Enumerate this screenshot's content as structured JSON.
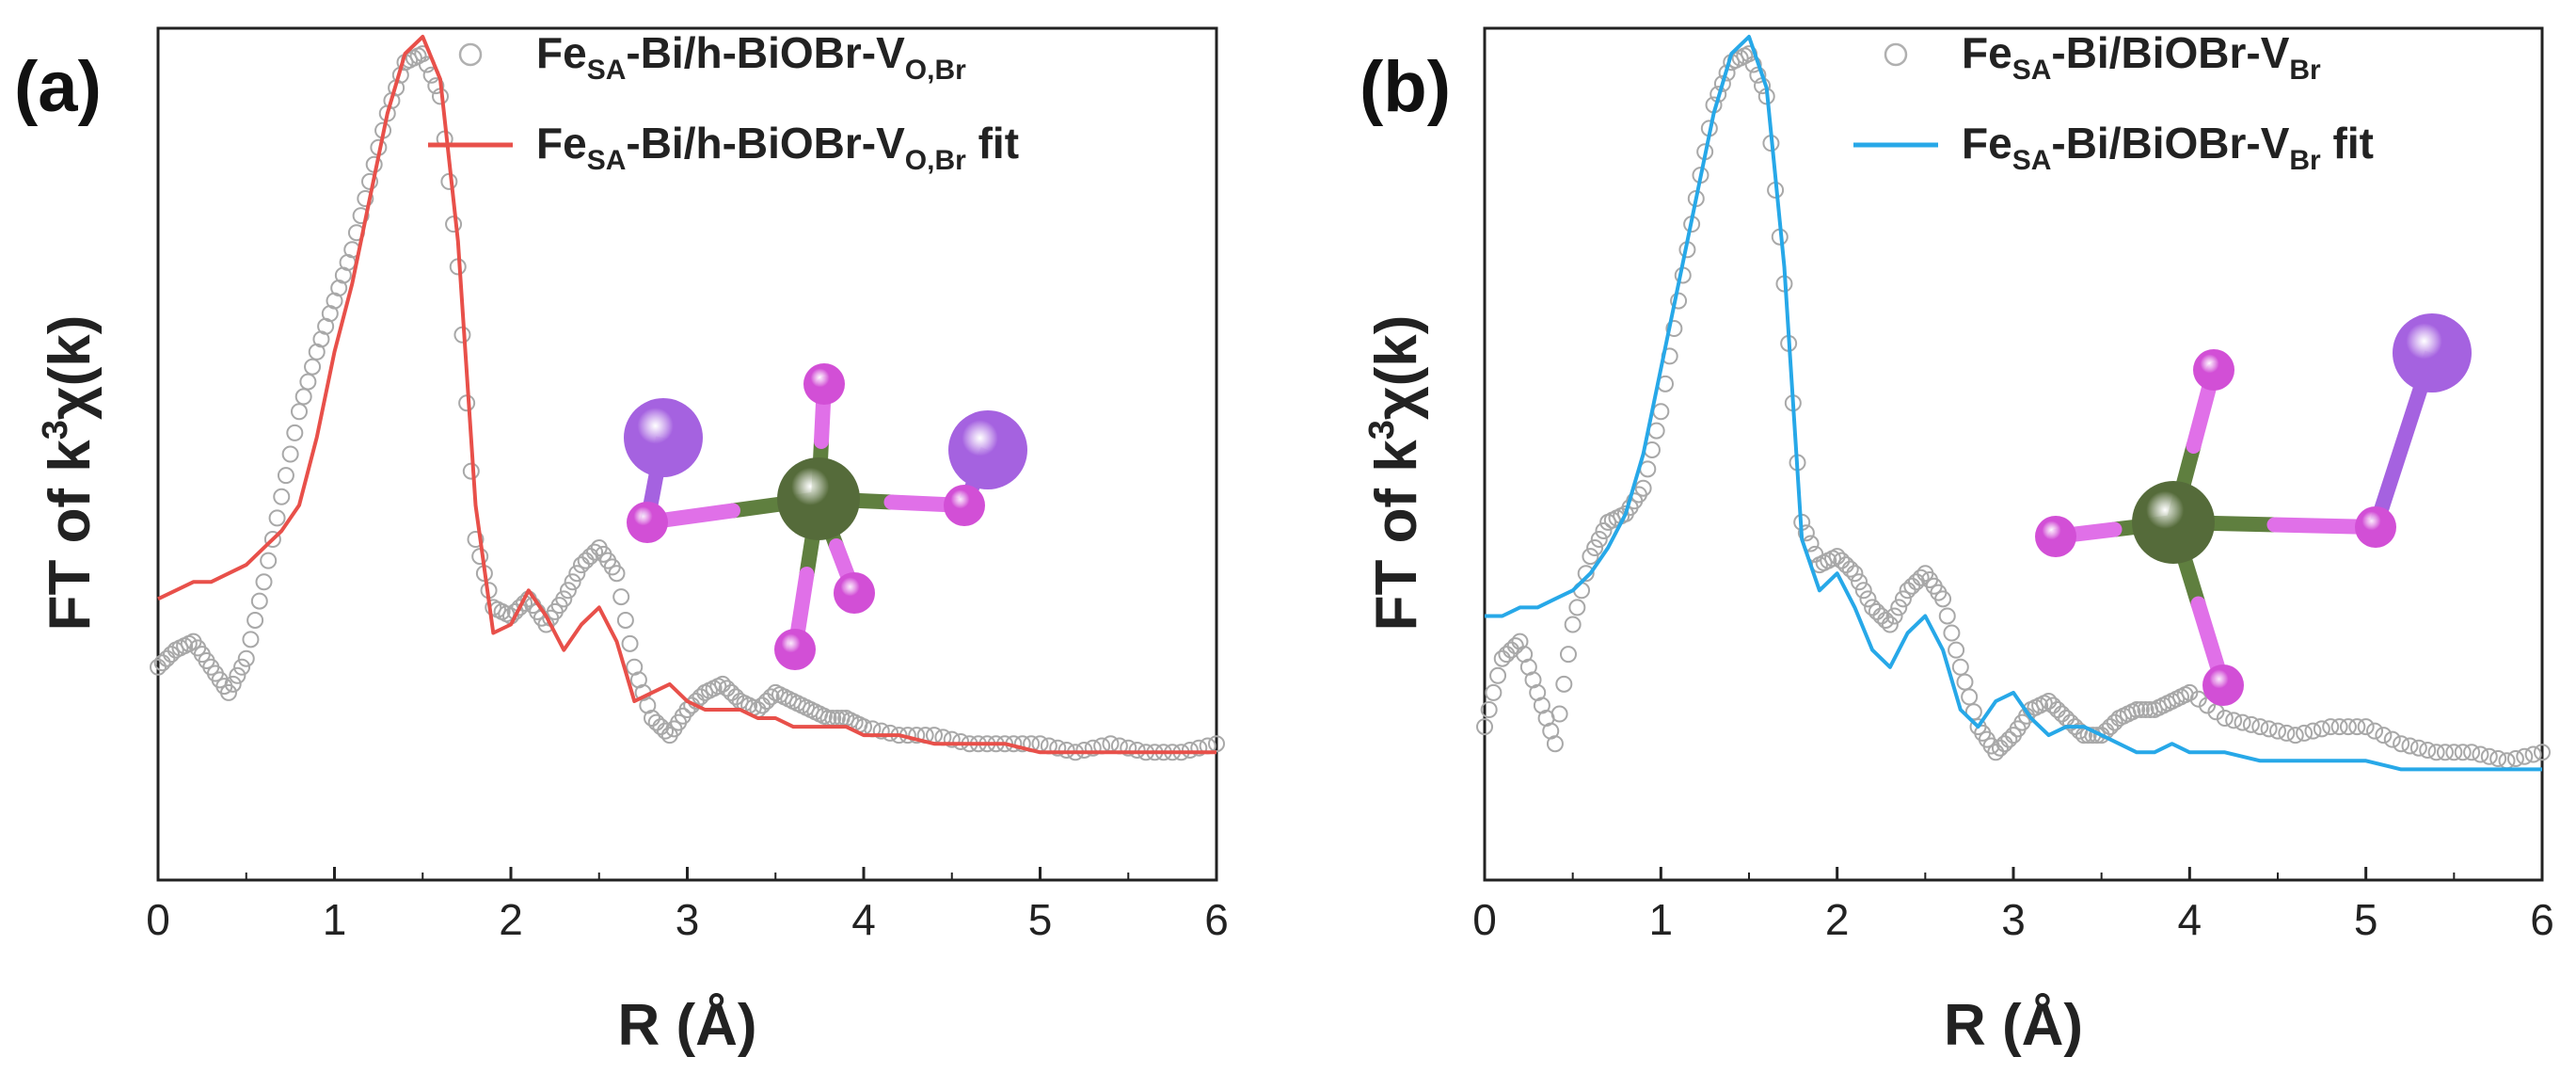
{
  "figure": {
    "background": "#ffffff",
    "atom_colors": {
      "fe": "#556b3a",
      "o": "#d24fd6",
      "bi": "#a562e0",
      "bond_fe": "#5f7f3f",
      "bond_o": "#e070e8"
    }
  },
  "chart_data": [
    {
      "panel": "(a)",
      "type": "line",
      "xlabel": "R (Å)",
      "ylabel_main": "FT of k",
      "ylabel_sup": "3",
      "ylabel_tail": "χ(k)",
      "xlim": [
        0,
        6
      ],
      "ylim": [
        0,
        1
      ],
      "xticks": [
        "0",
        "1",
        "2",
        "3",
        "4",
        "5",
        "6"
      ],
      "legend": {
        "position": "top-right",
        "entries": [
          {
            "marker": "circle",
            "color": "#b0b0b0",
            "base": "Fe",
            "sub1": "SA",
            "mid": "-Bi/h-BiOBr-V",
            "sub2": "O,Br",
            "tail": ""
          },
          {
            "marker": "line",
            "color": "#e8504a",
            "base": "Fe",
            "sub1": "SA",
            "mid": "-Bi/h-BiOBr-V",
            "sub2": "O,Br",
            "tail": " fit"
          }
        ]
      },
      "series": [
        {
          "name": "Fe_SA-Bi/h-BiOBr-V_O,Br",
          "style": "markers",
          "color": "#a8a8a8",
          "x": [
            0.0,
            0.1,
            0.2,
            0.3,
            0.4,
            0.5,
            0.6,
            0.7,
            0.8,
            0.9,
            1.0,
            1.1,
            1.2,
            1.3,
            1.4,
            1.5,
            1.6,
            1.7,
            1.8,
            1.9,
            2.0,
            2.1,
            2.2,
            2.3,
            2.4,
            2.5,
            2.6,
            2.7,
            2.8,
            2.9,
            3.0,
            3.1,
            3.2,
            3.3,
            3.4,
            3.5,
            3.6,
            3.7,
            3.8,
            3.9,
            4.0,
            4.2,
            4.4,
            4.6,
            4.8,
            5.0,
            5.2,
            5.4,
            5.6,
            5.8,
            6.0
          ],
          "y": [
            0.25,
            0.27,
            0.28,
            0.25,
            0.22,
            0.26,
            0.35,
            0.45,
            0.55,
            0.62,
            0.68,
            0.74,
            0.82,
            0.9,
            0.96,
            0.97,
            0.92,
            0.72,
            0.4,
            0.32,
            0.31,
            0.33,
            0.3,
            0.33,
            0.37,
            0.39,
            0.36,
            0.25,
            0.19,
            0.17,
            0.2,
            0.22,
            0.23,
            0.21,
            0.2,
            0.22,
            0.21,
            0.2,
            0.19,
            0.19,
            0.18,
            0.17,
            0.17,
            0.16,
            0.16,
            0.16,
            0.15,
            0.16,
            0.15,
            0.15,
            0.16
          ]
        },
        {
          "name": "Fe_SA-Bi/h-BiOBr-V_O,Br fit",
          "style": "line",
          "color": "#e8504a",
          "x": [
            0.0,
            0.1,
            0.2,
            0.3,
            0.4,
            0.5,
            0.6,
            0.7,
            0.8,
            0.9,
            1.0,
            1.1,
            1.2,
            1.3,
            1.4,
            1.5,
            1.6,
            1.7,
            1.8,
            1.9,
            2.0,
            2.1,
            2.2,
            2.3,
            2.4,
            2.5,
            2.6,
            2.7,
            2.8,
            2.9,
            3.0,
            3.1,
            3.2,
            3.3,
            3.4,
            3.5,
            3.6,
            3.7,
            3.8,
            3.9,
            4.0,
            4.2,
            4.4,
            4.6,
            4.8,
            5.0,
            5.2,
            5.4,
            5.6,
            5.8,
            6.0
          ],
          "y": [
            0.33,
            0.34,
            0.35,
            0.35,
            0.36,
            0.37,
            0.39,
            0.41,
            0.44,
            0.52,
            0.62,
            0.7,
            0.8,
            0.9,
            0.97,
            0.99,
            0.94,
            0.75,
            0.44,
            0.29,
            0.3,
            0.34,
            0.31,
            0.27,
            0.3,
            0.32,
            0.28,
            0.21,
            0.22,
            0.23,
            0.21,
            0.2,
            0.2,
            0.2,
            0.19,
            0.19,
            0.18,
            0.18,
            0.18,
            0.18,
            0.17,
            0.17,
            0.16,
            0.16,
            0.16,
            0.15,
            0.15,
            0.15,
            0.15,
            0.15,
            0.15
          ]
        }
      ]
    },
    {
      "panel": "(b)",
      "type": "line",
      "xlabel": "R (Å)",
      "ylabel_main": "FT of k",
      "ylabel_sup": "3",
      "ylabel_tail": "χ(k)",
      "xlim": [
        0,
        6
      ],
      "ylim": [
        0,
        1
      ],
      "xticks": [
        "0",
        "1",
        "2",
        "3",
        "4",
        "5",
        "6"
      ],
      "legend": {
        "position": "top-right",
        "entries": [
          {
            "marker": "circle",
            "color": "#b0b0b0",
            "base": "Fe",
            "sub1": "SA",
            "mid": "-Bi/BiOBr-V",
            "sub2": "Br",
            "tail": ""
          },
          {
            "marker": "line",
            "color": "#27a8e8",
            "base": "Fe",
            "sub1": "SA",
            "mid": "-Bi/BiOBr-V",
            "sub2": "Br",
            "tail": " fit"
          }
        ]
      },
      "series": [
        {
          "name": "Fe_SA-Bi/BiOBr-V_Br",
          "style": "markers",
          "color": "#a8a8a8",
          "x": [
            0.0,
            0.1,
            0.2,
            0.3,
            0.4,
            0.5,
            0.6,
            0.7,
            0.8,
            0.9,
            1.0,
            1.1,
            1.2,
            1.3,
            1.4,
            1.5,
            1.6,
            1.7,
            1.8,
            1.9,
            2.0,
            2.1,
            2.2,
            2.3,
            2.4,
            2.5,
            2.6,
            2.7,
            2.8,
            2.9,
            3.0,
            3.1,
            3.2,
            3.3,
            3.4,
            3.5,
            3.6,
            3.7,
            3.8,
            3.9,
            4.0,
            4.2,
            4.4,
            4.6,
            4.8,
            5.0,
            5.2,
            5.4,
            5.6,
            5.8,
            6.0
          ],
          "y": [
            0.18,
            0.26,
            0.28,
            0.22,
            0.16,
            0.3,
            0.38,
            0.42,
            0.43,
            0.46,
            0.55,
            0.68,
            0.8,
            0.91,
            0.96,
            0.97,
            0.92,
            0.7,
            0.42,
            0.37,
            0.38,
            0.36,
            0.32,
            0.3,
            0.34,
            0.36,
            0.33,
            0.25,
            0.18,
            0.15,
            0.17,
            0.2,
            0.21,
            0.19,
            0.17,
            0.17,
            0.19,
            0.2,
            0.2,
            0.21,
            0.22,
            0.19,
            0.18,
            0.17,
            0.18,
            0.18,
            0.16,
            0.15,
            0.15,
            0.14,
            0.15
          ]
        },
        {
          "name": "Fe_SA-Bi/BiOBr-V_Br fit",
          "style": "line",
          "color": "#27a8e8",
          "x": [
            0.0,
            0.1,
            0.2,
            0.3,
            0.4,
            0.5,
            0.6,
            0.7,
            0.8,
            0.9,
            1.0,
            1.1,
            1.2,
            1.3,
            1.4,
            1.5,
            1.6,
            1.7,
            1.8,
            1.9,
            2.0,
            2.1,
            2.2,
            2.3,
            2.4,
            2.5,
            2.6,
            2.7,
            2.8,
            2.9,
            3.0,
            3.1,
            3.2,
            3.3,
            3.4,
            3.5,
            3.6,
            3.7,
            3.8,
            3.9,
            4.0,
            4.2,
            4.4,
            4.6,
            4.8,
            5.0,
            5.2,
            5.4,
            5.6,
            5.8,
            6.0
          ],
          "y": [
            0.31,
            0.31,
            0.32,
            0.32,
            0.33,
            0.34,
            0.36,
            0.39,
            0.43,
            0.5,
            0.6,
            0.7,
            0.8,
            0.9,
            0.97,
            0.99,
            0.93,
            0.72,
            0.4,
            0.34,
            0.36,
            0.32,
            0.27,
            0.25,
            0.29,
            0.31,
            0.27,
            0.2,
            0.18,
            0.21,
            0.22,
            0.19,
            0.17,
            0.18,
            0.18,
            0.17,
            0.16,
            0.15,
            0.15,
            0.16,
            0.15,
            0.15,
            0.14,
            0.14,
            0.14,
            0.14,
            0.13,
            0.13,
            0.13,
            0.13,
            0.13
          ]
        }
      ]
    }
  ]
}
